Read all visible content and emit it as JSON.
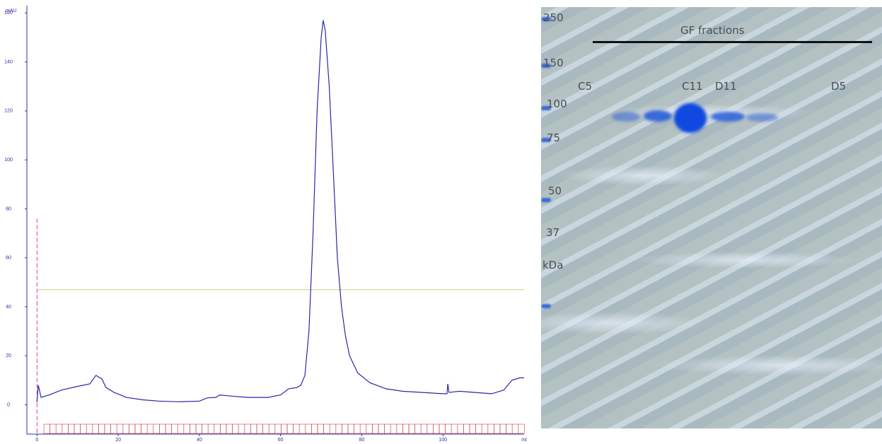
{
  "chart_data": {
    "type": "line",
    "y_label": "mAU",
    "x_label": "ml",
    "series": [
      {
        "color": "#2828a8",
        "x": [
          0,
          0.3,
          1,
          3,
          6,
          10,
          13,
          14.5,
          16,
          17,
          19,
          22,
          26,
          30,
          35,
          40,
          42,
          44,
          45,
          48,
          52,
          57,
          60,
          62,
          64,
          65,
          66,
          67,
          68,
          69,
          70,
          70.5,
          71,
          72,
          73,
          74,
          75,
          76,
          77,
          79,
          82,
          86,
          90,
          95,
          100,
          101,
          101.2,
          101.5,
          104,
          108,
          112,
          115,
          117,
          119,
          120
        ],
        "values": [
          1,
          8,
          3,
          4,
          6,
          7.5,
          8.5,
          12,
          10.5,
          7,
          5,
          3,
          2,
          1.5,
          1.2,
          1.5,
          2.8,
          3,
          4,
          3.5,
          3,
          3,
          4,
          6.5,
          7,
          8,
          12,
          30,
          70,
          120,
          150,
          157,
          153,
          130,
          95,
          60,
          40,
          28,
          20,
          13,
          9,
          6.5,
          5.5,
          5,
          4.5,
          4.5,
          8.5,
          5,
          5.5,
          5,
          4.5,
          6,
          10,
          11,
          11
        ]
      }
    ],
    "xlim": [
      -2.5,
      120
    ],
    "xticks": [
      0,
      20,
      40,
      60,
      80,
      100
    ],
    "ylim": [
      -12,
      163
    ],
    "yticks": [
      0,
      20,
      40,
      60,
      80,
      100,
      120,
      140,
      160
    ],
    "hline": 47,
    "hline_color": "#cdd48a",
    "vline": 0,
    "vline_top": 76,
    "vline_color": "#e0409a"
  },
  "gel": {
    "title": "GF fractions",
    "markers": [
      250,
      150,
      100,
      75,
      50,
      37
    ],
    "unit": "kDa",
    "lanes": [
      "C5",
      "C11",
      "D11",
      "D5"
    ]
  }
}
